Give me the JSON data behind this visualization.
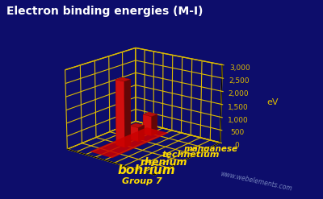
{
  "title_display": "Electron binding energies (M-I)",
  "elements": [
    "manganese",
    "technetium",
    "rhenium",
    "bohrium"
  ],
  "values": [
    769,
    544,
    2520,
    0
  ],
  "ylabel": "eV",
  "xlabel": "Group 7",
  "watermark": "www.webelements.com",
  "zlim": [
    0,
    3000
  ],
  "zticks": [
    0,
    500,
    1000,
    1500,
    2000,
    2500,
    3000
  ],
  "ztick_labels": [
    "0",
    "500",
    "1,000",
    "1,500",
    "2,000",
    "2,500",
    "3,000"
  ],
  "background_color": "#0d0d6b",
  "bar_color": "#ee1111",
  "bar_color_dark": "#880000",
  "grid_color": "#ddbb00",
  "text_color_white": "#ffffff",
  "text_color_yellow": "#ffdd00",
  "title_fontsize": 10,
  "bar_width": 0.45,
  "bar_depth": 0.45,
  "elev": 18,
  "azim": -52
}
